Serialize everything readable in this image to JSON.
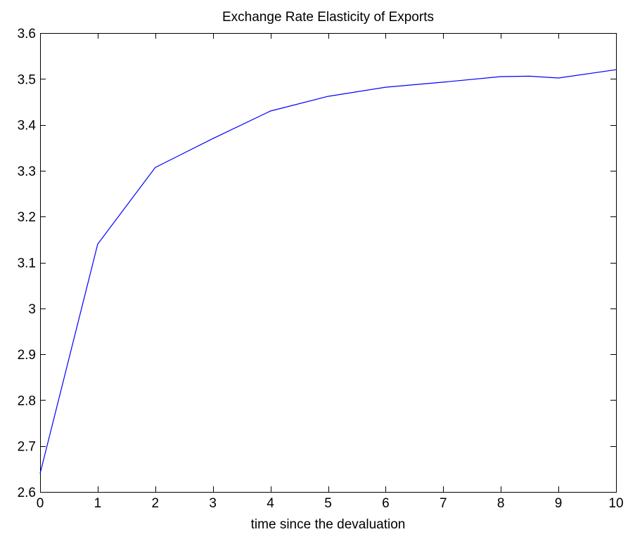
{
  "colors": {
    "background": "#ffffff",
    "axes": "#000000",
    "series_line": "#0000ff"
  },
  "chart_data": {
    "type": "line",
    "title": "Exchange Rate Elasticity of Exports",
    "xlabel": "time since the devaluation",
    "ylabel": "",
    "xlim": [
      0,
      10
    ],
    "ylim": [
      2.6,
      3.6
    ],
    "grid": false,
    "x_ticks": [
      "0",
      "1",
      "2",
      "3",
      "4",
      "5",
      "6",
      "7",
      "8",
      "9",
      "10"
    ],
    "y_ticks": [
      "2.6",
      "2.7",
      "2.8",
      "2.9",
      "3",
      "3.1",
      "3.2",
      "3.3",
      "3.4",
      "3.5",
      "3.6"
    ],
    "series": [
      {
        "color": "#0000ff",
        "x": [
          0,
          1,
          2,
          3,
          4,
          5,
          6,
          7,
          8,
          8.5,
          9,
          10
        ],
        "y": [
          2.64,
          3.14,
          3.307,
          3.37,
          3.43,
          3.462,
          3.482,
          3.493,
          3.505,
          3.506,
          3.502,
          3.52
        ]
      }
    ]
  }
}
